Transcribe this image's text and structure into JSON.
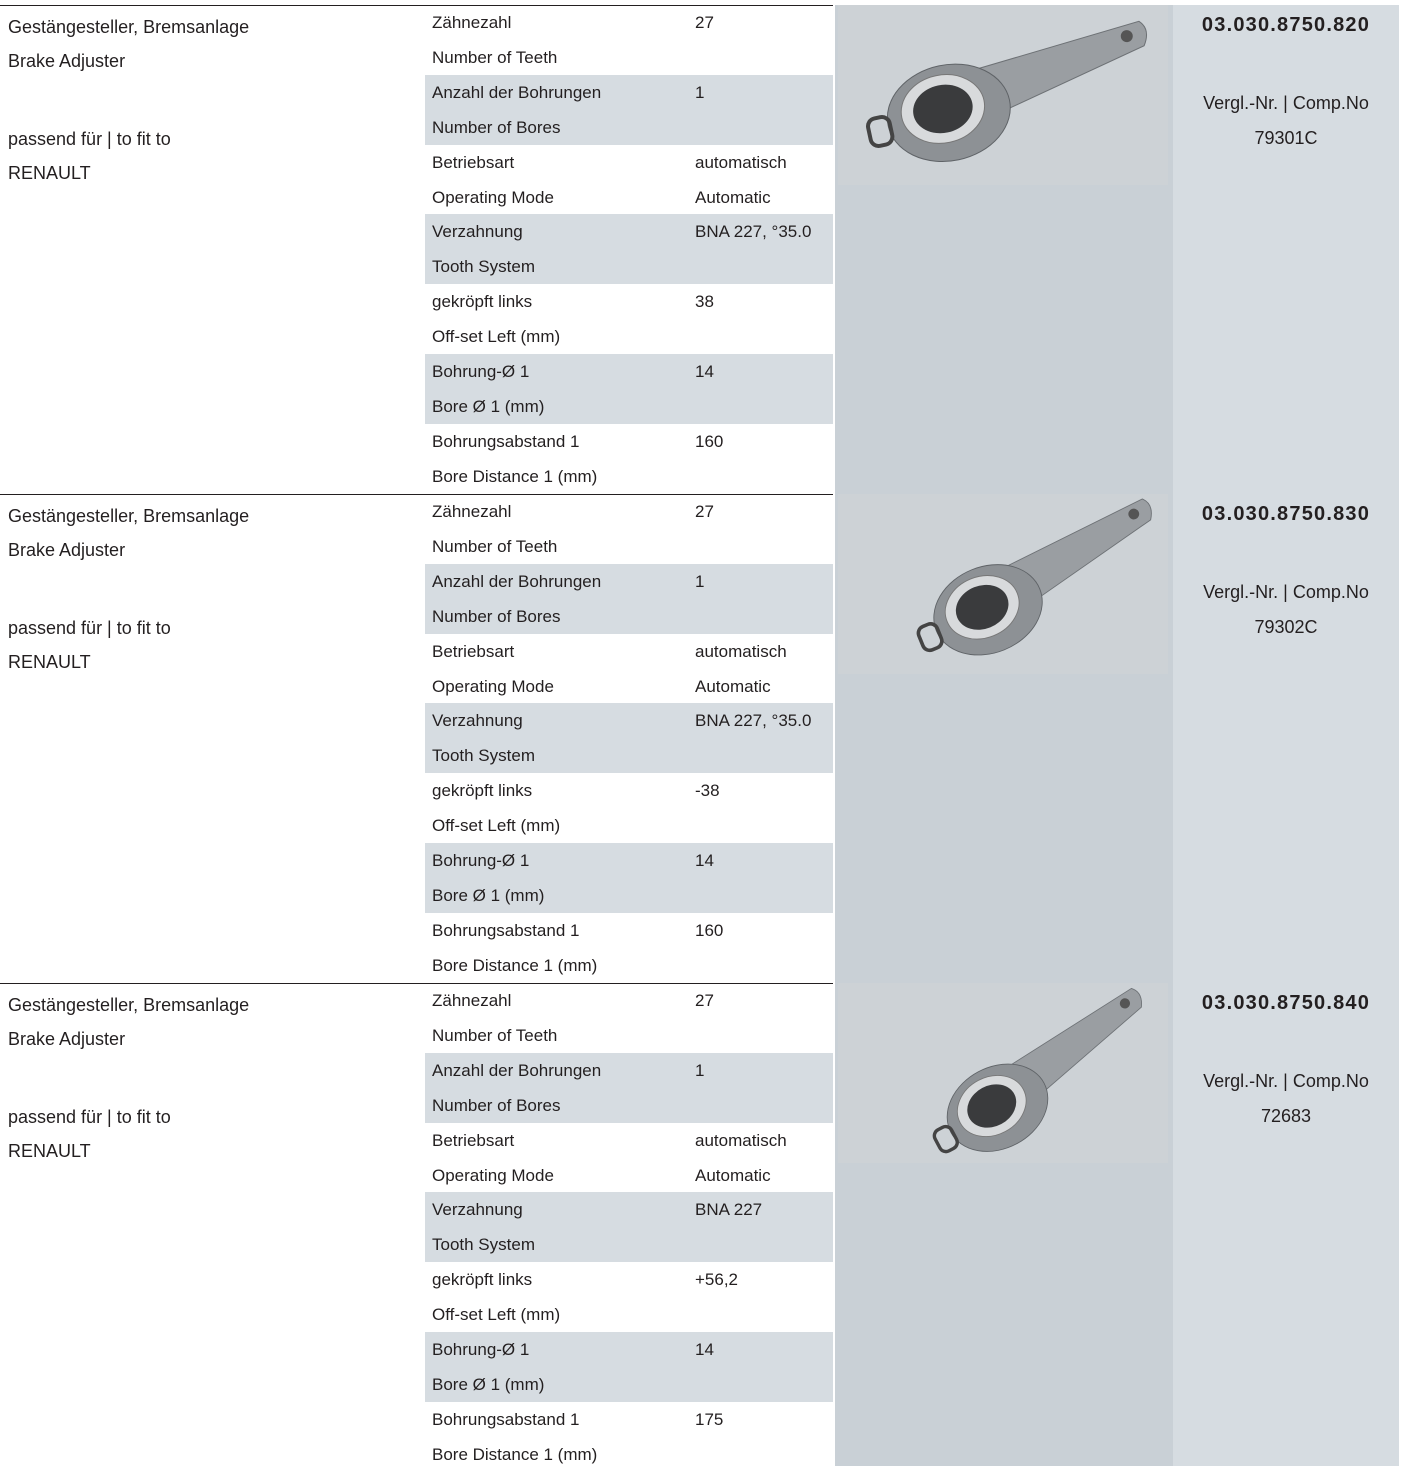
{
  "products": [
    {
      "description": {
        "de": "Gestängesteller, Bremsanlage",
        "en": "Brake Adjuster",
        "fit_label": "passend für | to fit to",
        "make": "RENAULT"
      },
      "specs": [
        {
          "de": "Zähnezahl",
          "en": "Number of Teeth",
          "values": [
            "27"
          ]
        },
        {
          "de": "Anzahl der Bohrungen",
          "en": "Number of Bores",
          "values": [
            "1"
          ]
        },
        {
          "de": "Betriebsart",
          "en": "Operating Mode",
          "values": [
            "automatisch",
            "Automatic"
          ]
        },
        {
          "de": "Verzahnung",
          "en": "Tooth System",
          "values": [
            "BNA 227, °35.0"
          ]
        },
        {
          "de": "gekröpft links",
          "en": "Off-set Left (mm)",
          "values": [
            "38"
          ]
        },
        {
          "de": "Bohrung-Ø 1",
          "en": "Bore Ø 1 (mm)",
          "values": [
            "14"
          ]
        },
        {
          "de": "Bohrungsabstand 1",
          "en": "Bore Distance 1 (mm)",
          "values": [
            "160"
          ]
        }
      ],
      "part_number": "03.030.8750.820",
      "comp_label": "Vergl.-Nr. | Comp.No",
      "comp_number": "79301C"
    },
    {
      "description": {
        "de": "Gestängesteller, Bremsanlage",
        "en": "Brake Adjuster",
        "fit_label": "passend für | to fit to",
        "make": "RENAULT"
      },
      "specs": [
        {
          "de": "Zähnezahl",
          "en": "Number of Teeth",
          "values": [
            "27"
          ]
        },
        {
          "de": "Anzahl der Bohrungen",
          "en": "Number of Bores",
          "values": [
            "1"
          ]
        },
        {
          "de": "Betriebsart",
          "en": "Operating Mode",
          "values": [
            "automatisch",
            "Automatic"
          ]
        },
        {
          "de": "Verzahnung",
          "en": "Tooth System",
          "values": [
            "BNA 227, °35.0"
          ]
        },
        {
          "de": "gekröpft links",
          "en": "Off-set Left (mm)",
          "values": [
            "-38"
          ]
        },
        {
          "de": "Bohrung-Ø 1",
          "en": "Bore Ø 1 (mm)",
          "values": [
            "14"
          ]
        },
        {
          "de": "Bohrungsabstand 1",
          "en": "Bore Distance 1 (mm)",
          "values": [
            "160"
          ]
        }
      ],
      "part_number": "03.030.8750.830",
      "comp_label": "Vergl.-Nr. | Comp.No",
      "comp_number": "79302C"
    },
    {
      "description": {
        "de": "Gestängesteller, Bremsanlage",
        "en": "Brake Adjuster",
        "fit_label": "passend für | to fit to",
        "make": "RENAULT"
      },
      "specs": [
        {
          "de": "Zähnezahl",
          "en": "Number of Teeth",
          "values": [
            "27"
          ]
        },
        {
          "de": "Anzahl der Bohrungen",
          "en": "Number of Bores",
          "values": [
            "1"
          ]
        },
        {
          "de": "Betriebsart",
          "en": "Operating Mode",
          "values": [
            "automatisch",
            "Automatic"
          ]
        },
        {
          "de": "Verzahnung",
          "en": "Tooth System",
          "values": [
            "BNA 227"
          ]
        },
        {
          "de": "gekröpft links",
          "en": "Off-set Left (mm)",
          "values": [
            "+56,2"
          ]
        },
        {
          "de": "Bohrung-Ø 1",
          "en": "Bore Ø 1 (mm)",
          "values": [
            "14"
          ]
        },
        {
          "de": "Bohrungsabstand 1",
          "en": "Bore Distance 1 (mm)",
          "values": [
            "175"
          ]
        }
      ],
      "part_number": "03.030.8750.840",
      "comp_label": "Vergl.-Nr. | Comp.No",
      "comp_number": "72683"
    }
  ]
}
